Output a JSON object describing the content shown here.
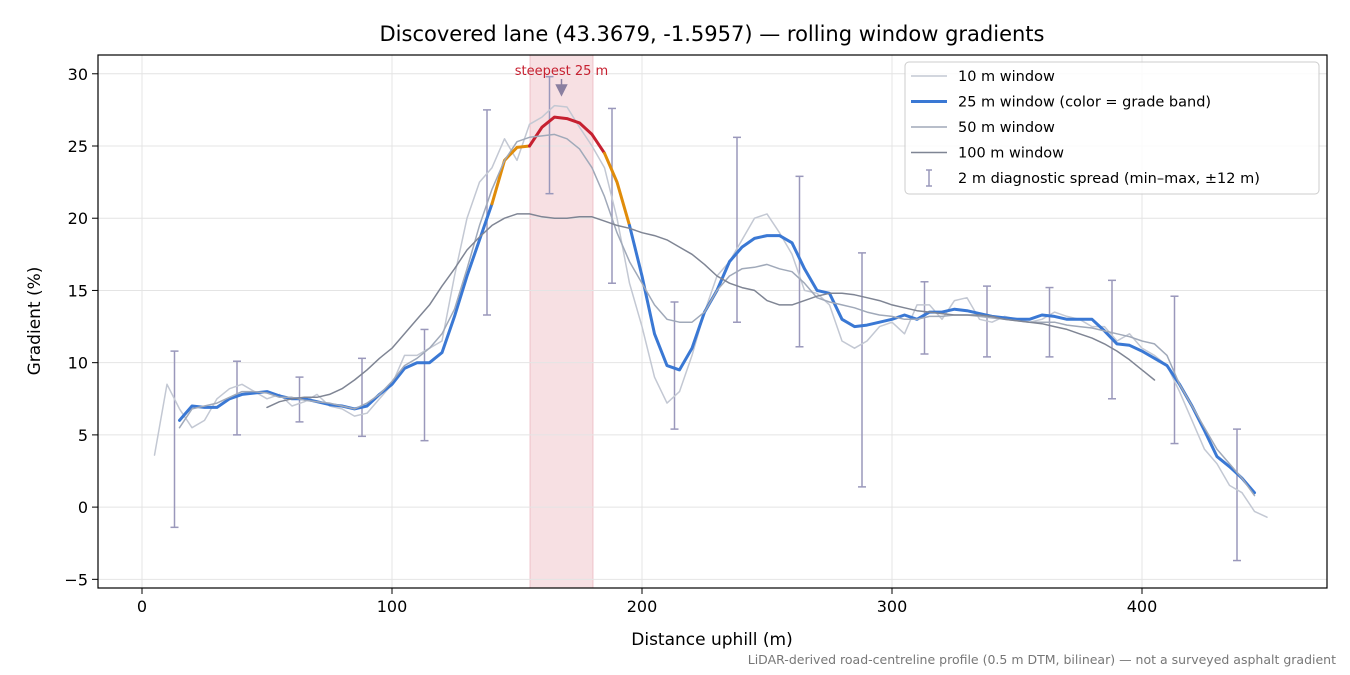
{
  "chart_data": {
    "type": "line",
    "title": "Discovered lane (43.3679, -1.5957) — rolling window gradients",
    "x_label": "Distance uphill (m)",
    "y_label": "Gradient (%)",
    "footnote": "LiDAR-derived road-centreline profile (0.5 m DTM, bilinear) — not a surveyed asphalt gradient",
    "xlim": [
      -17.6,
      474
    ],
    "ylim": [
      -5.6,
      31.3
    ],
    "xticks": [
      0,
      100,
      200,
      300,
      400
    ],
    "yticks": [
      {
        "value": -5,
        "label": "−5"
      },
      0,
      5,
      10,
      15,
      20,
      25,
      30
    ],
    "grid": true,
    "legend": "upper right",
    "x": [
      5,
      10,
      15,
      20,
      25,
      30,
      35,
      40,
      45,
      50,
      55,
      60,
      65,
      70,
      75,
      80,
      85,
      90,
      95,
      100,
      105,
      110,
      115,
      120,
      125,
      130,
      135,
      140,
      145,
      150,
      155,
      160,
      165,
      170,
      175,
      180,
      185,
      190,
      195,
      200,
      205,
      210,
      215,
      220,
      225,
      230,
      235,
      240,
      245,
      250,
      255,
      260,
      265,
      270,
      275,
      280,
      285,
      290,
      295,
      300,
      305,
      310,
      315,
      320,
      325,
      330,
      335,
      340,
      345,
      350,
      355,
      360,
      365,
      370,
      375,
      380,
      385,
      390,
      395,
      400,
      405,
      410,
      415,
      420,
      425,
      430,
      435,
      440,
      445,
      450
    ],
    "series": [
      {
        "name": "10 m window",
        "color": "#c3c8d3",
        "width": 1.5,
        "values": [
          3.6,
          8.5,
          6.8,
          5.5,
          6.0,
          7.5,
          8.2,
          8.5,
          8.0,
          7.5,
          7.8,
          7.0,
          7.3,
          7.8,
          7.0,
          6.8,
          6.3,
          6.5,
          7.5,
          8.5,
          10.5,
          10.5,
          11.0,
          11.5,
          16.0,
          20.0,
          22.5,
          23.5,
          25.5,
          24.0,
          26.5,
          27.0,
          27.8,
          27.7,
          26.3,
          25.0,
          23.5,
          20.0,
          15.5,
          12.5,
          9.0,
          7.2,
          8.0,
          10.5,
          13.5,
          16.0,
          17.0,
          18.5,
          20.0,
          20.3,
          19.0,
          17.5,
          15.0,
          14.8,
          14.0,
          11.5,
          11.0,
          11.5,
          12.5,
          12.8,
          12.0,
          14.0,
          14.0,
          13.0,
          14.3,
          14.5,
          13.0,
          12.8,
          13.2,
          13.0,
          12.8,
          13.0,
          13.5,
          13.2,
          13.0,
          12.5,
          12.5,
          11.5,
          12.0,
          11.0,
          10.5,
          9.8,
          8.0,
          6.0,
          4.0,
          3.0,
          1.5,
          1.0,
          -0.3,
          -0.7
        ]
      },
      {
        "name": "25 m window (color = grade band)",
        "color": "#3a78d4",
        "width": 3,
        "bands": [
          {
            "min": 25,
            "color": "#c62030"
          },
          {
            "min": 20,
            "color": "#e08c0a"
          }
        ],
        "values": [
          null,
          null,
          6.0,
          7.0,
          6.9,
          6.9,
          7.5,
          7.8,
          7.9,
          8.0,
          7.7,
          7.5,
          7.5,
          7.3,
          7.1,
          7.0,
          6.8,
          7.0,
          7.8,
          8.5,
          9.6,
          10.0,
          10.0,
          10.7,
          13.2,
          16.0,
          18.5,
          21.0,
          24.0,
          24.9,
          25.0,
          26.3,
          27.0,
          26.9,
          26.6,
          25.8,
          24.5,
          22.5,
          19.5,
          16.0,
          12.0,
          9.8,
          9.5,
          11.0,
          13.5,
          15.0,
          17.0,
          18.0,
          18.6,
          18.8,
          18.8,
          18.3,
          16.5,
          15.0,
          14.8,
          13.0,
          12.5,
          12.6,
          12.8,
          13.0,
          13.3,
          13.0,
          13.5,
          13.5,
          13.7,
          13.6,
          13.4,
          13.2,
          13.1,
          13.0,
          13.0,
          13.3,
          13.2,
          13.0,
          13.0,
          13.0,
          12.2,
          11.3,
          11.2,
          10.8,
          10.3,
          9.8,
          8.5,
          7.0,
          5.3,
          3.5,
          2.8,
          2.0,
          1.0,
          null
        ]
      },
      {
        "name": "50 m window",
        "color": "#a0a9b9",
        "width": 1.5,
        "values": [
          null,
          null,
          5.5,
          6.8,
          7.0,
          7.2,
          7.6,
          8.0,
          8.0,
          7.9,
          7.6,
          7.6,
          7.4,
          7.3,
          7.2,
          7.0,
          6.8,
          7.2,
          7.8,
          8.7,
          9.8,
          10.3,
          11.0,
          12.0,
          13.7,
          16.5,
          19.5,
          22.0,
          24.0,
          25.3,
          25.6,
          25.7,
          25.8,
          25.5,
          24.8,
          23.5,
          21.5,
          19.0,
          17.0,
          15.5,
          14.0,
          13.0,
          12.8,
          12.8,
          13.5,
          15.0,
          16.0,
          16.5,
          16.6,
          16.8,
          16.5,
          16.3,
          15.5,
          14.5,
          14.2,
          14.0,
          13.8,
          13.5,
          13.3,
          13.2,
          13.0,
          13.0,
          13.2,
          13.2,
          13.3,
          13.3,
          13.2,
          13.1,
          13.0,
          12.9,
          12.8,
          12.8,
          12.8,
          12.6,
          12.5,
          12.4,
          12.2,
          12.0,
          11.8,
          11.5,
          11.3,
          10.5,
          8.5,
          7.0,
          5.5,
          4.0,
          3.0,
          2.0,
          0.8,
          null
        ]
      },
      {
        "name": "100 m window",
        "color": "#7f8594",
        "width": 1.5,
        "values": [
          null,
          null,
          null,
          null,
          null,
          null,
          null,
          null,
          null,
          6.9,
          7.3,
          7.5,
          7.6,
          7.6,
          7.8,
          8.2,
          8.8,
          9.5,
          10.3,
          11.0,
          12.0,
          13.0,
          14.0,
          15.3,
          16.5,
          17.8,
          18.7,
          19.5,
          20.0,
          20.3,
          20.3,
          20.1,
          20.0,
          20.0,
          20.1,
          20.1,
          19.8,
          19.5,
          19.3,
          19.0,
          18.8,
          18.5,
          18.0,
          17.5,
          16.8,
          16.0,
          15.5,
          15.2,
          15.0,
          14.3,
          14.0,
          14.0,
          14.3,
          14.6,
          14.8,
          14.8,
          14.7,
          14.5,
          14.3,
          14.0,
          13.8,
          13.6,
          13.5,
          13.4,
          13.3,
          13.3,
          13.3,
          13.2,
          13.0,
          12.9,
          12.8,
          12.7,
          12.5,
          12.3,
          12.0,
          11.7,
          11.3,
          10.8,
          10.2,
          9.5,
          8.8,
          null,
          null,
          null,
          null,
          null,
          null,
          null,
          null,
          null
        ]
      }
    ],
    "error_bars": {
      "name": "2 m diagnostic spread (min–max, ±12 m)",
      "color": "#9a98bb",
      "x": [
        13,
        38,
        63,
        88,
        113,
        138,
        163,
        188,
        213,
        238,
        263,
        288,
        313,
        338,
        363,
        388,
        413,
        438
      ],
      "low": [
        -1.4,
        5.0,
        5.9,
        4.9,
        4.6,
        13.3,
        21.7,
        15.5,
        5.4,
        12.8,
        11.1,
        1.4,
        10.6,
        10.4,
        10.4,
        7.5,
        4.4,
        -3.7
      ],
      "high": [
        10.8,
        10.1,
        9.0,
        10.3,
        12.3,
        27.5,
        29.8,
        27.6,
        14.2,
        25.6,
        22.9,
        17.6,
        15.6,
        15.3,
        15.2,
        15.7,
        14.6,
        5.4
      ]
    },
    "highlight": {
      "range": [
        155.2,
        180.4
      ],
      "color": "#e8a6b0",
      "label": "steepest 25 m",
      "label_color": "#c62030"
    }
  }
}
